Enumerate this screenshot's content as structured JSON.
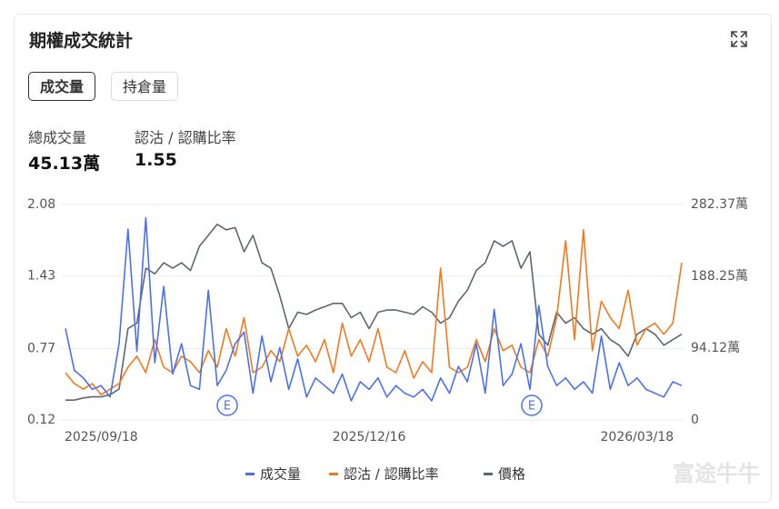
{
  "header": {
    "title": "期權成交統計",
    "tabs": [
      "成交量",
      "持倉量"
    ]
  },
  "stats": [
    {
      "label": "總成交量",
      "value": "45.13萬"
    },
    {
      "label": "認沽 / 認購比率",
      "value": "1.55"
    }
  ],
  "watermark": "富途牛牛",
  "chart_data": {
    "type": "line",
    "categories": [
      null,
      null,
      null,
      null,
      "2025/09/18",
      null,
      null,
      null,
      null,
      null,
      null,
      null,
      null,
      null,
      null,
      null,
      null,
      null,
      null,
      null,
      null,
      null,
      null,
      null,
      null,
      null,
      null,
      null,
      null,
      null,
      null,
      null,
      null,
      null,
      "2025/12/16",
      null,
      null,
      null,
      null,
      null,
      null,
      null,
      null,
      null,
      null,
      null,
      null,
      null,
      null,
      null,
      null,
      null,
      null,
      null,
      null,
      null,
      null,
      null,
      null,
      null,
      null,
      null,
      null,
      null,
      "2026/03/18",
      null,
      null,
      null,
      null,
      null
    ],
    "ylim": [
      0.12,
      2.08
    ],
    "yticks": [
      0.12,
      0.77,
      1.43,
      2.08
    ],
    "y2lim": [
      0,
      282.37
    ],
    "y2ticks": [
      0,
      {
        "value": 94.12,
        "label": "94.12萬"
      },
      {
        "value": 188.25,
        "label": "188.25萬"
      },
      {
        "value": 282.37,
        "label": "282.37萬"
      }
    ],
    "grid": true,
    "events": [
      "E",
      "E"
    ],
    "series": [
      {
        "name": "成交量",
        "color": "#4a72e8",
        "axis": "y2",
        "values": [
          120,
          65,
          55,
          40,
          45,
          30,
          100,
          250,
          90,
          265,
          75,
          175,
          60,
          100,
          45,
          40,
          170,
          45,
          65,
          100,
          115,
          35,
          110,
          50,
          95,
          40,
          80,
          30,
          55,
          45,
          35,
          60,
          25,
          50,
          40,
          55,
          30,
          45,
          35,
          30,
          40,
          25,
          55,
          35,
          70,
          50,
          100,
          35,
          145,
          45,
          60,
          100,
          40,
          150,
          70,
          45,
          55,
          40,
          50,
          35,
          110,
          40,
          75,
          45,
          55,
          40,
          35,
          30,
          50,
          45
        ]
      },
      {
        "name": "認沽 / 認購比率",
        "color": "#f07a1e",
        "values": [
          0.55,
          0.45,
          0.4,
          0.45,
          0.35,
          0.4,
          0.45,
          0.6,
          0.7,
          0.55,
          0.85,
          0.6,
          0.55,
          0.7,
          0.65,
          0.55,
          0.75,
          0.6,
          0.95,
          0.7,
          1.05,
          0.55,
          0.6,
          0.75,
          0.65,
          0.95,
          0.7,
          0.8,
          0.65,
          0.85,
          0.55,
          1.0,
          0.7,
          0.85,
          0.65,
          0.95,
          0.6,
          0.55,
          0.75,
          0.5,
          0.65,
          0.55,
          1.5,
          0.6,
          0.55,
          0.6,
          0.85,
          0.65,
          0.95,
          0.75,
          0.8,
          0.6,
          0.55,
          0.85,
          0.7,
          1.05,
          1.75,
          0.85,
          1.85,
          0.75,
          1.2,
          1.05,
          0.95,
          1.3,
          0.8,
          0.95,
          1.0,
          0.9,
          1.0,
          1.55
        ]
      },
      {
        "name": "價格",
        "color": "#5f6673",
        "values": [
          0.3,
          0.3,
          0.32,
          0.33,
          0.33,
          0.35,
          0.4,
          0.95,
          1.0,
          1.5,
          1.45,
          1.55,
          1.5,
          1.55,
          1.48,
          1.7,
          1.8,
          1.9,
          1.85,
          1.87,
          1.65,
          1.8,
          1.55,
          1.5,
          1.25,
          0.95,
          1.1,
          1.08,
          1.12,
          1.15,
          1.18,
          1.18,
          1.05,
          1.1,
          0.95,
          1.1,
          1.12,
          1.12,
          1.1,
          1.08,
          1.15,
          1.1,
          1.0,
          1.05,
          1.2,
          1.3,
          1.48,
          1.55,
          1.75,
          1.7,
          1.75,
          1.5,
          1.65,
          0.9,
          0.8,
          1.1,
          1.0,
          1.05,
          0.95,
          0.9,
          0.95,
          0.85,
          0.8,
          0.7,
          0.9,
          0.95,
          0.9,
          0.8,
          0.85,
          0.9
        ]
      }
    ]
  }
}
